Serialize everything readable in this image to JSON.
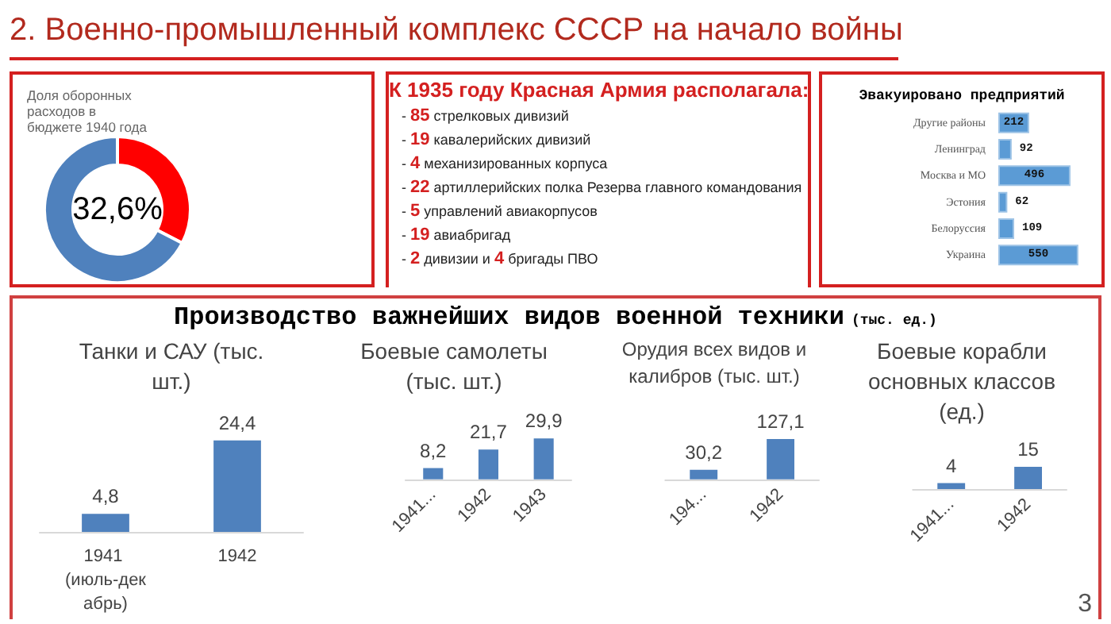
{
  "chart_data": [
    {
      "type": "other",
      "title": "2. Военно-промышленный комплекс СССР на начало войны"
    },
    {
      "type": "donut",
      "title": "Доля оборонных расходов в бюджете 1940 года",
      "categories": [
        null,
        null
      ],
      "values": [
        32.6,
        67.4
      ],
      "colors": [
        "#ff0000",
        "#4f81bd"
      ],
      "value_labels": [
        "32,6%",
        null
      ]
    },
    {
      "type": "other",
      "title": "К 1935 году Красная Армия располагала:",
      "annotations": [
        "- 85 стрелковых дивизий",
        "- 19 кавалерийских дивизий",
        "- 4 механизированных корпуса",
        "- 22 артиллерийских полка Резерва главного командования",
        "- 5 управлений авиакорпусов",
        "- 19 авиабригад",
        "- 2 дивизии и 4 бригады ПВО"
      ]
    },
    {
      "type": "bar",
      "orientation": "horizontal",
      "title": "Эвакуировано предприятий",
      "categories": [
        "Другие районы",
        "Ленинград",
        "Москва и МО",
        "Эстония",
        "Белоруссия",
        "Украина"
      ],
      "values": [
        212,
        92,
        496,
        62,
        109,
        550
      ],
      "color": "#5b9bd5",
      "data_labels": true,
      "tick_labels": "y"
    },
    {
      "type": "other",
      "title": "Производство важнейших видов военной техники",
      "subtitle": "(тыс. ед.)",
      "annotations": [
        "3"
      ]
    },
    {
      "type": "bar",
      "title": "Танки и САУ (тыс. шт.)",
      "categories": [
        "1941 (июль-декабрь)",
        "1942"
      ],
      "values": [
        4.8,
        24.4
      ],
      "color": "#4f81bd",
      "value_labels": [
        "4,8",
        "24,4"
      ],
      "tick_labels": "x"
    },
    {
      "type": "bar",
      "title": "Боевые самолеты (тыс. шт.)",
      "categories": [
        "1941...",
        "1942",
        "1943"
      ],
      "values": [
        8.2,
        21.7,
        29.9
      ],
      "color": "#4f81bd",
      "value_labels": [
        "8,2",
        "21,7",
        "29,9"
      ],
      "tick_labels": "x"
    },
    {
      "type": "bar",
      "title": "Орудия всех видов и калибров (тыс. шт.)",
      "categories": [
        "194...",
        "1942"
      ],
      "values": [
        30.2,
        127.1
      ],
      "color": "#4f81bd",
      "value_labels": [
        "30,2",
        "127,1"
      ],
      "tick_labels": "x"
    },
    {
      "type": "bar",
      "title": "Боевые корабли основных классов (ед.)",
      "categories": [
        "1941...",
        "1942"
      ],
      "values": [
        4,
        15
      ],
      "color": "#4f81bd",
      "data_labels": true,
      "tick_labels": "x"
    }
  ]
}
